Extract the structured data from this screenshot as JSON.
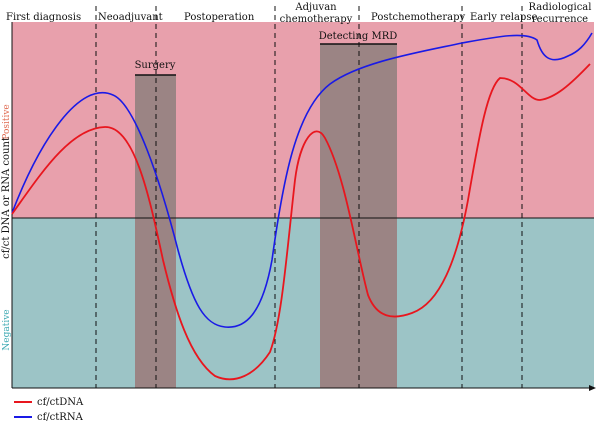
{
  "colors": {
    "positive_band": "#e8a0ac",
    "negative_band": "#9cc4c6",
    "procedure_box": "#9b8484",
    "ctdna_line": "#e8161e",
    "ctrna_line": "#1a1ae6",
    "positive_text": "#e06a50",
    "negative_text": "#3aa8b2"
  },
  "phases": [
    {
      "label": "First diagnosis"
    },
    {
      "label": "Neoadjuvant"
    },
    {
      "label": "Postoperation"
    },
    {
      "label": "Adjuvan chemotherapy"
    },
    {
      "label": "Postchemotherapy"
    },
    {
      "label": "Early relapse"
    },
    {
      "label": "Radiological recurrence"
    }
  ],
  "procedures": [
    {
      "label": "Surgery"
    },
    {
      "label": "Detecting MRD"
    }
  ],
  "axis": {
    "y_label": "cf/ct DNA or RNA count",
    "positive": "Positive",
    "negative": "Negative"
  },
  "legend": [
    {
      "label": "cf/ctDNA",
      "color": "#e8161e"
    },
    {
      "label": "cf/ctRNA",
      "color": "#1a1ae6"
    }
  ]
}
